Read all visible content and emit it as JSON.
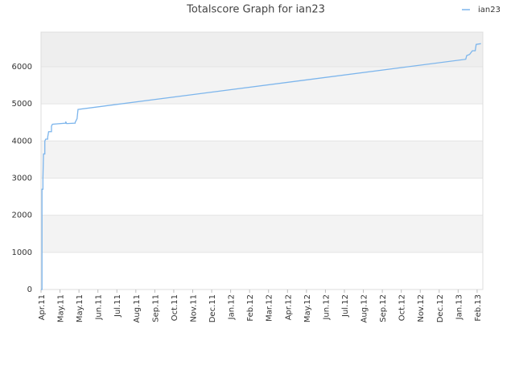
{
  "chart_data": {
    "type": "line",
    "title": "Totalscore Graph for ian23",
    "series": [
      {
        "name": "ian23",
        "color": "#7cb5ec",
        "x": [
          0,
          0.05,
          0.05,
          0.1,
          0.1,
          0.13,
          0.2,
          0.2,
          0.25,
          0.35,
          0.35,
          0.4,
          0.55,
          0.55,
          0.6,
          1.3,
          1.3,
          1.35,
          1.4,
          1.8,
          1.8,
          1.9,
          1.95,
          22.4,
          22.45,
          22.6,
          22.75,
          22.9,
          22.95,
          23.2
        ],
        "values": [
          0,
          0,
          2700,
          2700,
          3000,
          3650,
          3650,
          4000,
          4050,
          4050,
          4100,
          4250,
          4250,
          4400,
          4450,
          4480,
          4520,
          4470,
          4470,
          4480,
          4500,
          4600,
          4850,
          6200,
          6300,
          6330,
          6430,
          6430,
          6600,
          6620
        ]
      }
    ],
    "xlim": [
      0,
      23.3
    ],
    "xticks": [
      {
        "value": 0,
        "label": "Apr.11"
      },
      {
        "value": 1,
        "label": "May.11"
      },
      {
        "value": 2,
        "label": "May.11"
      },
      {
        "value": 3,
        "label": "Jun.11"
      },
      {
        "value": 4,
        "label": "Jul.11"
      },
      {
        "value": 5,
        "label": "Aug.11"
      },
      {
        "value": 6,
        "label": "Sep.11"
      },
      {
        "value": 7,
        "label": "Oct.11"
      },
      {
        "value": 8,
        "label": "Nov.11"
      },
      {
        "value": 9,
        "label": "Dec.11"
      },
      {
        "value": 10,
        "label": "Jan.12"
      },
      {
        "value": 11,
        "label": "Feb.12"
      },
      {
        "value": 12,
        "label": "Mar.12"
      },
      {
        "value": 13,
        "label": "Apr.12"
      },
      {
        "value": 14,
        "label": "May.12"
      },
      {
        "value": 15,
        "label": "Jun.12"
      },
      {
        "value": 16,
        "label": "Jul.12"
      },
      {
        "value": 17,
        "label": "Aug.12"
      },
      {
        "value": 18,
        "label": "Sep.12"
      },
      {
        "value": 19,
        "label": "Oct.12"
      },
      {
        "value": 20,
        "label": "Nov.12"
      },
      {
        "value": 21,
        "label": "Dec.12"
      },
      {
        "value": 22,
        "label": "Jan.13"
      },
      {
        "value": 23,
        "label": "Feb.13"
      }
    ],
    "ylim": [
      0,
      6930
    ],
    "yticks": [
      0,
      1000,
      2000,
      3000,
      4000,
      5000,
      6000
    ],
    "grid": true,
    "legend": "top-right"
  }
}
